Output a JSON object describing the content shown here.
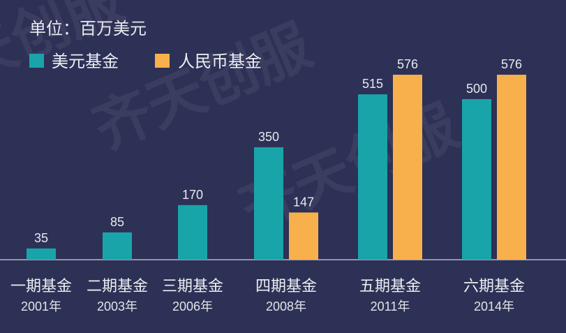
{
  "watermark": "齐天创服",
  "colors": {
    "background": "#2d3155",
    "usd_fund": "#19a4aa",
    "rmb_fund": "#f7b04c",
    "text": "#e8e9ef",
    "axis": "#b5b7c8"
  },
  "chart_data": {
    "type": "bar",
    "title": "",
    "unit_label": "单位：百万美元",
    "legend": "top-left",
    "grid": false,
    "data_labels": true,
    "ylim": [
      0,
      600
    ],
    "categories": [
      "一期基金",
      "二期基金",
      "三期基金",
      "四期基金",
      "五期基金",
      "六期基金"
    ],
    "category_years": [
      "2001年",
      "2003年",
      "2006年",
      "2008年",
      "2011年",
      "2014年"
    ],
    "series": [
      {
        "name": "美元基金",
        "color": "#19a4aa",
        "values": [
          35,
          85,
          170,
          350,
          515,
          500
        ]
      },
      {
        "name": "人民币基金",
        "color": "#f7b04c",
        "values": [
          null,
          null,
          null,
          147,
          576,
          576
        ]
      }
    ]
  }
}
